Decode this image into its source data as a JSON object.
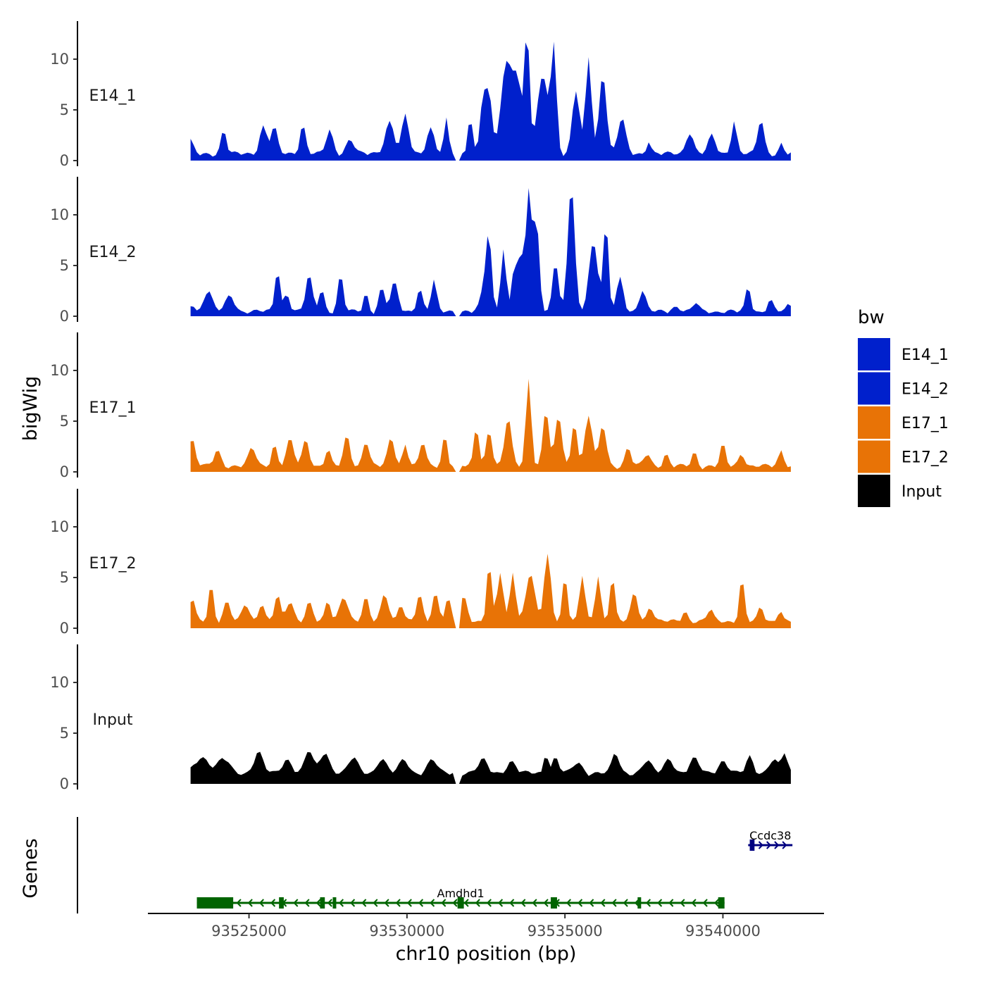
{
  "chart_data": {
    "type": "area",
    "title": "",
    "xlabel": "chr10 position (bp)",
    "ylabel": "bigWig",
    "genes_label": "Genes",
    "xlim": [
      93521800,
      93543200
    ],
    "ylim": [
      0,
      14
    ],
    "x_ticks": [
      93525000,
      93530000,
      93535000,
      93540000
    ],
    "y_ticks": [
      0,
      5,
      10
    ],
    "x_start": 93523000,
    "step": 100,
    "gaps": [
      [
        93531500,
        93531700
      ]
    ],
    "legend": {
      "title": "bw",
      "position": "right"
    },
    "series": [
      {
        "name": "E14_1",
        "color": "#0020CC",
        "peaks": [
          [
            93523150,
            1.3,
            120
          ],
          [
            93524200,
            2.3,
            120
          ],
          [
            93525450,
            2.7,
            160
          ],
          [
            93525800,
            2.6,
            140
          ],
          [
            93526700,
            2.9,
            130
          ],
          [
            93527550,
            2.3,
            150
          ],
          [
            93528200,
            1.4,
            180
          ],
          [
            93529450,
            3.2,
            200
          ],
          [
            93529950,
            3.8,
            150
          ],
          [
            93530750,
            2.6,
            170
          ],
          [
            93531250,
            3.4,
            100
          ],
          [
            93532000,
            3.6,
            110
          ],
          [
            93532400,
            5.1,
            130
          ],
          [
            93532600,
            5.6,
            140
          ],
          [
            93533150,
            9.0,
            230
          ],
          [
            93533500,
            7.0,
            200
          ],
          [
            93533800,
            11.5,
            110
          ],
          [
            93534300,
            7.5,
            250
          ],
          [
            93534650,
            10.0,
            120
          ],
          [
            93535350,
            6.2,
            160
          ],
          [
            93535750,
            9.5,
            130
          ],
          [
            93536200,
            8.0,
            160
          ],
          [
            93536800,
            3.5,
            170
          ],
          [
            93537650,
            1.3,
            100
          ],
          [
            93538950,
            2.2,
            160
          ],
          [
            93539650,
            1.8,
            160
          ],
          [
            93540350,
            3.3,
            120
          ],
          [
            93541200,
            3.4,
            140
          ],
          [
            93541850,
            1.0,
            100
          ]
        ],
        "base": 0.5
      },
      {
        "name": "E14_2",
        "color": "#0020CC",
        "peaks": [
          [
            93523200,
            0.8,
            100
          ],
          [
            93523700,
            2.1,
            180
          ],
          [
            93524400,
            1.5,
            200
          ],
          [
            93525900,
            4.3,
            110
          ],
          [
            93526200,
            1.9,
            120
          ],
          [
            93526900,
            3.5,
            150
          ],
          [
            93527300,
            2.2,
            120
          ],
          [
            93527900,
            3.6,
            120
          ],
          [
            93528700,
            1.9,
            100
          ],
          [
            93529200,
            2.3,
            130
          ],
          [
            93529600,
            2.8,
            160
          ],
          [
            93530400,
            2.3,
            130
          ],
          [
            93530850,
            3.0,
            120
          ],
          [
            93532500,
            3.4,
            180
          ],
          [
            93532600,
            5.3,
            110
          ],
          [
            93533050,
            6.2,
            120
          ],
          [
            93533400,
            4.6,
            110
          ],
          [
            93533600,
            5.3,
            110
          ],
          [
            93533850,
            12.0,
            130
          ],
          [
            93534100,
            8.8,
            130
          ],
          [
            93534700,
            5.0,
            130
          ],
          [
            93535200,
            12.5,
            150
          ],
          [
            93535900,
            6.8,
            200
          ],
          [
            93536300,
            8.7,
            110
          ],
          [
            93536750,
            3.3,
            150
          ],
          [
            93537450,
            2.0,
            150
          ],
          [
            93538500,
            0.5,
            180
          ],
          [
            93539150,
            0.9,
            120
          ],
          [
            93540800,
            2.5,
            110
          ],
          [
            93541500,
            1.1,
            130
          ],
          [
            93542100,
            0.7,
            100
          ]
        ],
        "base": 0.3
      },
      {
        "name": "E17_1",
        "color": "#E87306",
        "peaks": [
          [
            93523200,
            2.7,
            140
          ],
          [
            93524000,
            1.5,
            160
          ],
          [
            93525100,
            1.8,
            160
          ],
          [
            93525800,
            2.2,
            120
          ],
          [
            93526300,
            2.6,
            160
          ],
          [
            93526800,
            2.6,
            150
          ],
          [
            93527500,
            1.6,
            120
          ],
          [
            93528100,
            3.0,
            140
          ],
          [
            93528700,
            2.5,
            140
          ],
          [
            93529500,
            2.8,
            150
          ],
          [
            93529950,
            2.2,
            120
          ],
          [
            93530500,
            2.4,
            130
          ],
          [
            93531200,
            3.2,
            110
          ],
          [
            93532200,
            4.0,
            110
          ],
          [
            93532600,
            3.7,
            130
          ],
          [
            93533200,
            4.8,
            150
          ],
          [
            93533850,
            8.6,
            120
          ],
          [
            93534400,
            5.6,
            130
          ],
          [
            93534800,
            4.9,
            150
          ],
          [
            93535300,
            4.6,
            120
          ],
          [
            93535750,
            5.0,
            160
          ],
          [
            93536200,
            4.1,
            150
          ],
          [
            93537000,
            1.8,
            130
          ],
          [
            93537600,
            1.2,
            150
          ],
          [
            93538200,
            1.2,
            120
          ],
          [
            93539100,
            1.4,
            110
          ],
          [
            93540000,
            2.2,
            110
          ],
          [
            93540600,
            1.3,
            130
          ],
          [
            93541850,
            1.5,
            120
          ]
        ],
        "base": 0.4
      },
      {
        "name": "E17_2",
        "color": "#E87306",
        "peaks": [
          [
            93523200,
            2.3,
            130
          ],
          [
            93523800,
            3.8,
            110
          ],
          [
            93524300,
            1.9,
            150
          ],
          [
            93524900,
            1.7,
            160
          ],
          [
            93525400,
            1.9,
            130
          ],
          [
            93525900,
            2.7,
            120
          ],
          [
            93526300,
            2.0,
            160
          ],
          [
            93526900,
            1.9,
            150
          ],
          [
            93527500,
            2.0,
            120
          ],
          [
            93528000,
            2.6,
            180
          ],
          [
            93528700,
            2.3,
            130
          ],
          [
            93529300,
            2.9,
            160
          ],
          [
            93529800,
            1.7,
            120
          ],
          [
            93530400,
            2.6,
            140
          ],
          [
            93530900,
            2.8,
            140
          ],
          [
            93531300,
            2.2,
            120
          ],
          [
            93531800,
            2.4,
            160
          ],
          [
            93532600,
            5.7,
            110
          ],
          [
            93532950,
            4.8,
            130
          ],
          [
            93533350,
            5.1,
            120
          ],
          [
            93533900,
            4.6,
            200
          ],
          [
            93534450,
            6.5,
            150
          ],
          [
            93535000,
            4.6,
            110
          ],
          [
            93535550,
            4.6,
            120
          ],
          [
            93536050,
            4.6,
            120
          ],
          [
            93536500,
            4.6,
            110
          ],
          [
            93537200,
            2.8,
            150
          ],
          [
            93537700,
            1.5,
            140
          ],
          [
            93538800,
            1.0,
            130
          ],
          [
            93539600,
            1.2,
            130
          ],
          [
            93540600,
            4.3,
            110
          ],
          [
            93541200,
            1.4,
            120
          ],
          [
            93541800,
            1.2,
            110
          ]
        ],
        "base": 0.5
      },
      {
        "name": "Input",
        "color": "#000000",
        "peaks": [
          [
            93523500,
            1.6,
            300
          ],
          [
            93524200,
            1.4,
            250
          ],
          [
            93525300,
            2.0,
            200
          ],
          [
            93526200,
            1.4,
            200
          ],
          [
            93526900,
            2.2,
            180
          ],
          [
            93527400,
            2.1,
            200
          ],
          [
            93528300,
            1.5,
            200
          ],
          [
            93529200,
            1.4,
            200
          ],
          [
            93529900,
            1.3,
            200
          ],
          [
            93530800,
            1.3,
            200
          ],
          [
            93532400,
            1.3,
            200
          ],
          [
            93533300,
            1.1,
            200
          ],
          [
            93534400,
            2.4,
            80
          ],
          [
            93534700,
            1.5,
            150
          ],
          [
            93535400,
            1.0,
            200
          ],
          [
            93536600,
            2.0,
            150
          ],
          [
            93537600,
            1.2,
            200
          ],
          [
            93538300,
            1.4,
            200
          ],
          [
            93539100,
            1.4,
            200
          ],
          [
            93540000,
            1.2,
            200
          ],
          [
            93540850,
            1.6,
            150
          ],
          [
            93541600,
            1.3,
            200
          ],
          [
            93541950,
            2.0,
            120
          ]
        ],
        "base": 0.9
      }
    ],
    "genes": [
      {
        "name": "Amdhd1",
        "strand": "-",
        "color": "#006400",
        "start": 93523350,
        "end": 93540050,
        "exons": [
          [
            93523350,
            93524500
          ],
          [
            93525950,
            93526100
          ],
          [
            93527250,
            93527400
          ],
          [
            93527650,
            93527750
          ],
          [
            93531600,
            93531800
          ],
          [
            93534550,
            93534750
          ],
          [
            93537300,
            93537400
          ],
          [
            93539850,
            93540050
          ]
        ]
      },
      {
        "name": "Ccdc38",
        "strand": "+",
        "color": "#000080",
        "start": 93540800,
        "end": 93542200,
        "exons": [
          [
            93540850,
            93541000
          ]
        ]
      }
    ]
  }
}
